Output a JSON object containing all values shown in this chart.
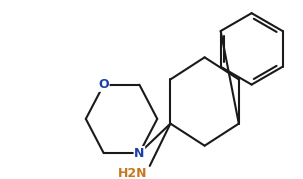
{
  "bg_color": "#ffffff",
  "line_color": "#1a1a1a",
  "n_color": "#1a3faa",
  "o_color": "#1a3faa",
  "h2n_color": "#c87820",
  "lw": 1.5,
  "fig_width": 3.03,
  "fig_height": 1.79,
  "dpi": 100,
  "N_label": "N",
  "O_label": "O",
  "H2N_label": "H2N",
  "font_size": 9
}
